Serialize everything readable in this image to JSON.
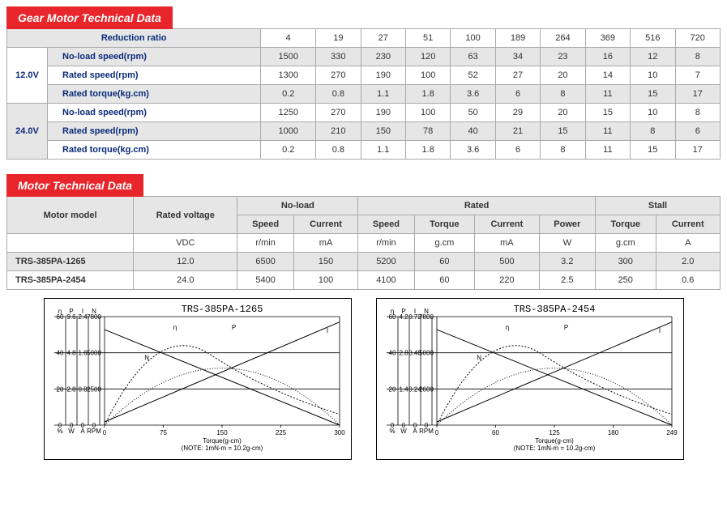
{
  "gear": {
    "header": "Gear Motor Technical Data",
    "ratio_label": "Reduction ratio",
    "ratios": [
      "4",
      "19",
      "27",
      "51",
      "100",
      "189",
      "264",
      "369",
      "516",
      "720"
    ],
    "v12": {
      "label": "12.0V",
      "noload_label": "No-load speed(rpm)",
      "noload": [
        "1500",
        "330",
        "230",
        "120",
        "63",
        "34",
        "23",
        "16",
        "12",
        "8"
      ],
      "rated_label": "Rated speed(rpm)",
      "rated": [
        "1300",
        "270",
        "190",
        "100",
        "52",
        "27",
        "20",
        "14",
        "10",
        "7"
      ],
      "torque_label": "Rated torque(kg.cm)",
      "torque": [
        "0.2",
        "0.8",
        "1.1",
        "1.8",
        "3.6",
        "6",
        "8",
        "11",
        "15",
        "17"
      ]
    },
    "v24": {
      "label": "24.0V",
      "noload_label": "No-load speed(rpm)",
      "noload": [
        "1250",
        "270",
        "190",
        "100",
        "50",
        "29",
        "20",
        "15",
        "10",
        "8"
      ],
      "rated_label": "Rated speed(rpm)",
      "rated": [
        "1000",
        "210",
        "150",
        "78",
        "40",
        "21",
        "15",
        "11",
        "8",
        "6"
      ],
      "torque_label": "Rated torque(kg.cm)",
      "torque": [
        "0.2",
        "0.8",
        "1.1",
        "1.8",
        "3.6",
        "6",
        "8",
        "11",
        "15",
        "17"
      ]
    }
  },
  "motor": {
    "header": "Motor Technical Data",
    "col_model": "Motor model",
    "col_voltage": "Rated voltage",
    "grp_noload": "No-load",
    "grp_rated": "Rated",
    "grp_stall": "Stall",
    "c_speed": "Speed",
    "c_current": "Current",
    "c_torque": "Torque",
    "c_power": "Power",
    "u_vdc": "VDC",
    "u_rmin": "r/min",
    "u_ma": "mA",
    "u_gcm": "g.cm",
    "u_w": "W",
    "u_a": "A",
    "rows": [
      {
        "model": "TRS-385PA-1265",
        "vdc": "12.0",
        "nl_spd": "6500",
        "nl_cur": "150",
        "r_spd": "5200",
        "r_tor": "60",
        "r_cur": "500",
        "r_pow": "3.2",
        "s_tor": "300",
        "s_cur": "2.0"
      },
      {
        "model": "TRS-385PA-2454",
        "vdc": "24.0",
        "nl_spd": "5400",
        "nl_cur": "100",
        "r_spd": "4100",
        "r_tor": "60",
        "r_cur": "220",
        "r_pow": "2.5",
        "s_tor": "250",
        "s_cur": "0.6"
      }
    ]
  },
  "charts": {
    "left": {
      "title": "TRS-385PA-1265",
      "y_cols": [
        "η",
        "P",
        "I",
        "N"
      ],
      "y_ticks": [
        [
          "60",
          "40",
          "20",
          "0"
        ],
        [
          "9.6",
          "4.8",
          "2.8",
          "0"
        ],
        [
          "2.4",
          "1.6",
          "0.8",
          "0"
        ],
        [
          "7800",
          "5000",
          "2500",
          "0"
        ]
      ],
      "y_units": [
        "%",
        "W",
        "A",
        "RPM"
      ],
      "x_ticks": [
        "0",
        "75",
        "150",
        "225",
        "300"
      ],
      "x_label": "Torque(g-cm)",
      "note": "(NOTE: 1mN-m = 10.2g-cm)",
      "curve_labels": [
        "N",
        "η",
        "P",
        "I"
      ]
    },
    "right": {
      "title": "TRS-385PA-2454",
      "y_cols": [
        "η",
        "P",
        "I",
        "N"
      ],
      "y_ticks": [
        [
          "60",
          "40",
          "20",
          "0"
        ],
        [
          "4.2",
          "2.8",
          "1.4",
          "0"
        ],
        [
          "0.72",
          "0.48",
          "0.24",
          "0"
        ],
        [
          "7800",
          "5000",
          "2600",
          "0"
        ]
      ],
      "y_units": [
        "%",
        "W",
        "A",
        "RPM"
      ],
      "x_ticks": [
        "0",
        "60",
        "125",
        "180",
        "249"
      ],
      "x_label": "Torque(g-cm)",
      "note": "(NOTE: 1mN-m = 10.2g-cm)",
      "curve_labels": [
        "N",
        "η",
        "P",
        "I"
      ]
    },
    "style": {
      "stroke": "#000",
      "stroke_width": 1,
      "font_size_tick": 8,
      "font_size_label": 8
    }
  }
}
